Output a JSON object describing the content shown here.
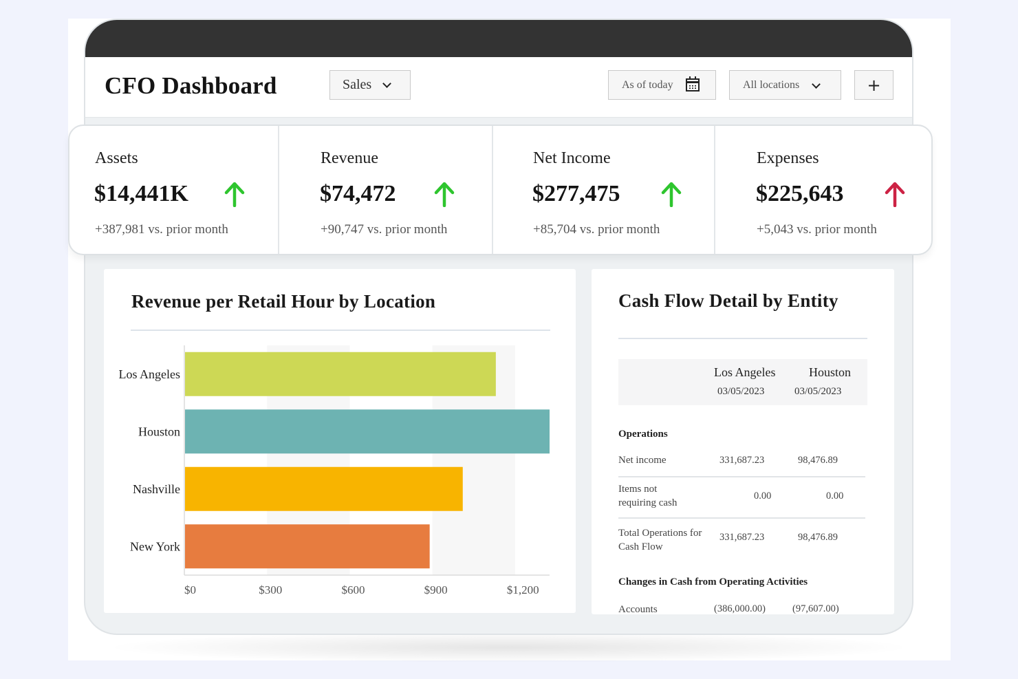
{
  "header": {
    "title": "CFO Dashboard",
    "module_select": "Sales",
    "date_filter": "As of today",
    "location_filter": "All locations",
    "add_label": "+"
  },
  "kpis": [
    {
      "label": "Assets",
      "value": "$14,441K",
      "delta": "+387,981 vs. prior month",
      "trend": "up",
      "arrow_color": "#2ec52e"
    },
    {
      "label": "Revenue",
      "value": "$74,472",
      "delta": "+90,747 vs. prior month",
      "trend": "up",
      "arrow_color": "#2ec52e"
    },
    {
      "label": "Net Income",
      "value": "$277,475",
      "delta": "+85,704 vs. prior month",
      "trend": "up",
      "arrow_color": "#2ec52e"
    },
    {
      "label": "Expenses",
      "value": "$225,643",
      "delta": "+5,043 vs. prior month",
      "trend": "up",
      "arrow_color": "#cc2244"
    }
  ],
  "revenue_chart": {
    "title": "Revenue per Retail Hour by Location"
  },
  "chart_data": {
    "type": "bar",
    "orientation": "horizontal",
    "title": "Revenue per Retail Hour by Location",
    "categories": [
      "Los Angeles",
      "Houston",
      "Nashville",
      "New York"
    ],
    "values": [
      1130,
      1325,
      1010,
      890
    ],
    "colors": [
      "#cdd855",
      "#6db3b2",
      "#f8b400",
      "#e77c3f"
    ],
    "xticks": [
      "$0",
      "$300",
      "$600",
      "$900",
      "$1,200"
    ],
    "xlim": [
      0,
      1325
    ],
    "xlabel": "",
    "ylabel": "",
    "grid": "alternating vertical bands"
  },
  "cash_flow": {
    "title": "Cash Flow Detail by Entity",
    "columns": [
      {
        "name": "Los Angeles",
        "date": "03/05/2023"
      },
      {
        "name": "Houston",
        "date": "03/05/2023"
      }
    ],
    "sections": [
      {
        "title": "Operations",
        "rows": [
          {
            "label": "Net income",
            "values": [
              "331,687.23",
              "98,476.89"
            ]
          },
          {
            "label": "Items not requiring cash",
            "values": [
              "0.00",
              "0.00"
            ]
          },
          {
            "label": "Total Operations for Cash Flow",
            "values": [
              "331,687.23",
              "98,476.89"
            ]
          }
        ]
      },
      {
        "title": "Changes in Cash from Operating Activities",
        "rows": [
          {
            "label": "Accounts",
            "values": [
              "(386,000.00)",
              "(97,607.00)"
            ]
          }
        ]
      }
    ]
  }
}
